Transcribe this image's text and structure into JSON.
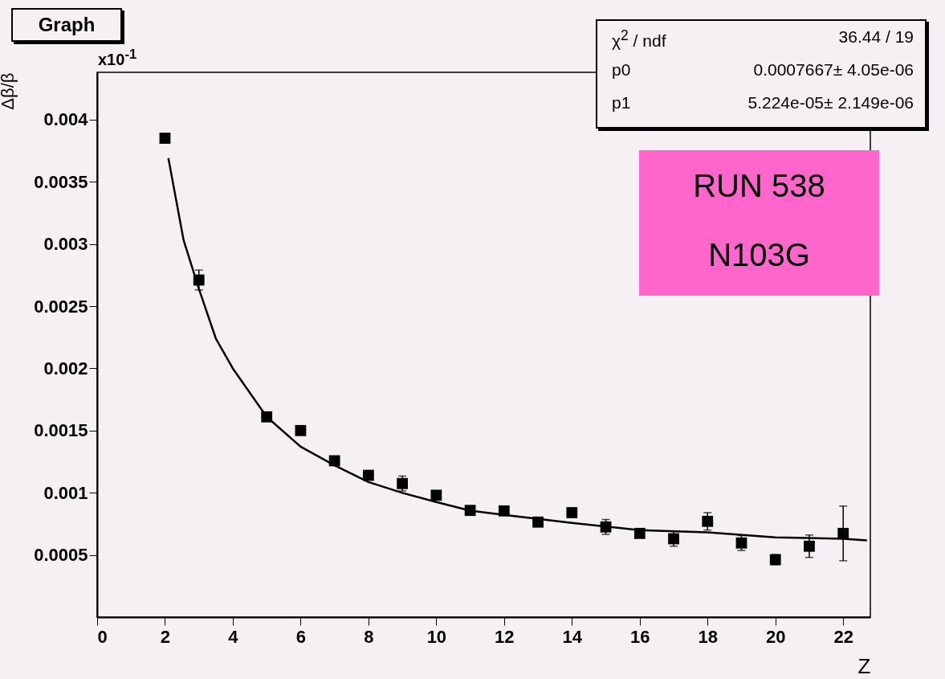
{
  "chart_data": {
    "type": "scatter",
    "title": "Graph",
    "xlabel": "Z",
    "ylabel": "Δβ/β",
    "marker": "square",
    "x": [
      2,
      3,
      5,
      6,
      7,
      8,
      9,
      10,
      11,
      12,
      13,
      14,
      15,
      16,
      17,
      18,
      19,
      20,
      21,
      22
    ],
    "series": [
      {
        "color": "#000000",
        "values": [
          0.00385,
          0.00271,
          0.00161,
          0.0015,
          0.001257,
          0.00114,
          0.001074,
          0.00098,
          0.000858,
          0.000854,
          0.000764,
          0.00084,
          0.000725,
          0.000673,
          0.00063,
          0.00077,
          0.000596,
          0.000462,
          0.00057,
          0.000673
        ],
        "errors": [
          null,
          8e-05,
          null,
          null,
          null,
          null,
          6e-05,
          null,
          null,
          null,
          null,
          null,
          6e-05,
          null,
          6e-05,
          7e-05,
          6e-05,
          4e-05,
          9e-05,
          0.00022
        ]
      },
      {
        "type": "line",
        "color": "#000000",
        "marker": "none",
        "x": [
          2.1,
          2.55,
          3,
          3.5,
          4,
          5,
          6,
          7,
          8,
          9,
          10,
          11,
          12,
          14,
          16,
          18,
          20,
          22,
          22.7
        ],
        "values": [
          0.00369,
          0.00303,
          0.00264,
          0.00224,
          0.002,
          0.00161,
          0.00137,
          0.00122,
          0.001086,
          0.000999,
          0.000925,
          0.000856,
          0.000822,
          0.000758,
          0.000699,
          0.000681,
          0.000641,
          0.00063,
          0.000617
        ]
      }
    ],
    "xlim": [
      0,
      22.8
    ],
    "xticks": [
      0,
      2,
      4,
      6,
      8,
      10,
      12,
      14,
      16,
      18,
      20,
      22
    ],
    "ylim": [
      0,
      0.00438
    ],
    "yticks": [
      0.0005,
      0.001,
      0.0015,
      0.002,
      0.0025,
      0.003,
      0.0035,
      0.004
    ],
    "annotations": [
      "x10$^{-1}$",
      "χ$^{2}$ / ndf",
      "36.44 / 19",
      "p0",
      "0.0007667± 4.05e-06",
      "p1",
      "5.224e-05± 2.149e-06",
      "RUN 538",
      "N103G"
    ]
  }
}
